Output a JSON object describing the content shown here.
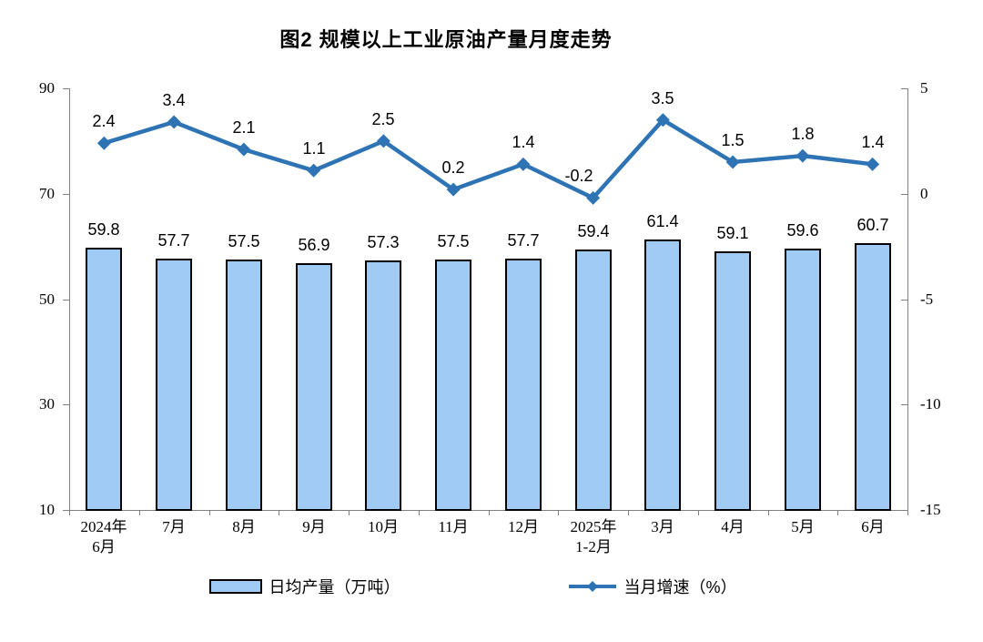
{
  "title": "图2 规模以上工业原油产量月度走势",
  "legend": {
    "bar_label": "日均产量（万吨）",
    "line_label": "当月增速（%）"
  },
  "colors": {
    "bar_fill": "#A0CBF4",
    "bar_border": "#000000",
    "line": "#2E74B5",
    "axis": "#808080",
    "text": "#000000"
  },
  "chart_data": {
    "type": "bar+line",
    "title": "图2 规模以上工业原油产量月度走势",
    "xlabel": "",
    "ylabel_left": "日均产量（万吨）",
    "ylabel_right": "当月增速（%）",
    "grid": false,
    "legend_position": "bottom",
    "categories": [
      "2024年\n6月",
      "7月",
      "8月",
      "9月",
      "10月",
      "11月",
      "12月",
      "2025年\n1-2月",
      "3月",
      "4月",
      "5月",
      "6月"
    ],
    "series": [
      {
        "name": "日均产量（万吨）",
        "type": "bar",
        "axis": "left",
        "values": [
          59.8,
          57.7,
          57.5,
          56.9,
          57.3,
          57.5,
          57.7,
          59.4,
          61.4,
          59.1,
          59.6,
          60.7
        ]
      },
      {
        "name": "当月增速（%）",
        "type": "line",
        "axis": "right",
        "values": [
          2.4,
          3.4,
          2.1,
          1.1,
          2.5,
          0.2,
          1.4,
          -0.2,
          3.5,
          1.5,
          1.8,
          1.4
        ]
      }
    ],
    "left_axis": {
      "min": 10,
      "max": 90,
      "ticks": [
        90,
        70,
        50,
        30,
        10
      ]
    },
    "right_axis": {
      "min": -15,
      "max": 5,
      "ticks": [
        5,
        0,
        -5,
        -10,
        -15
      ]
    }
  }
}
